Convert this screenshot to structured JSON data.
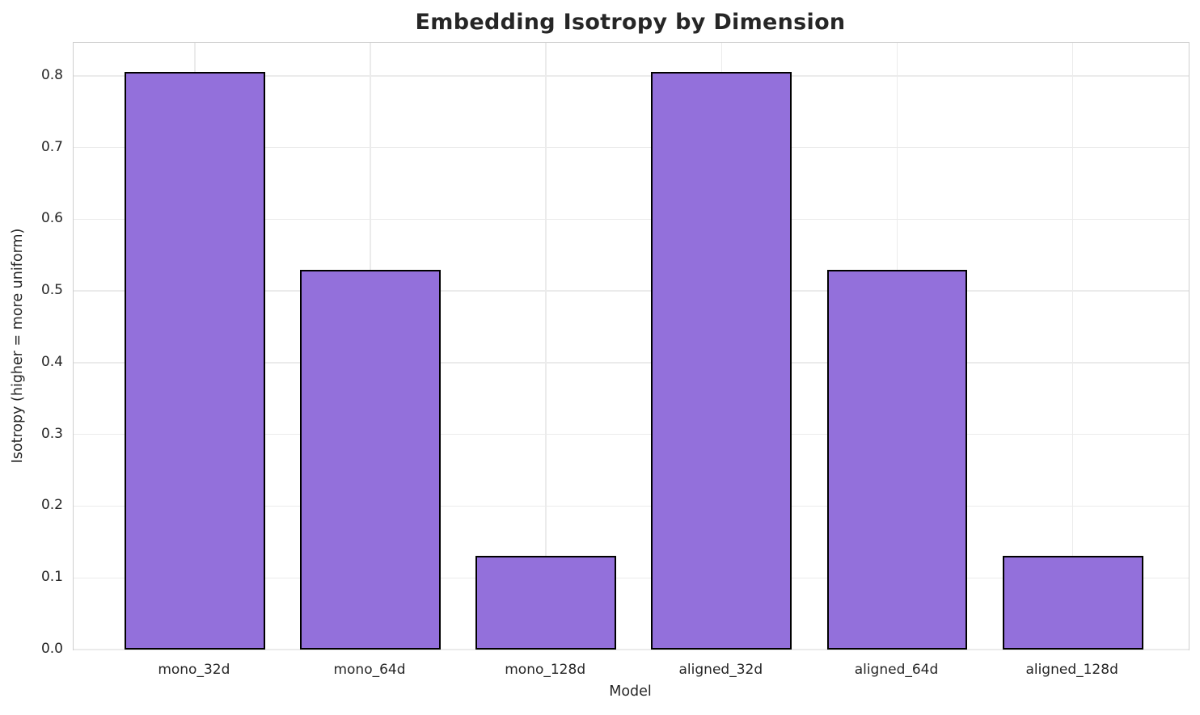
{
  "chart_data": {
    "type": "bar",
    "title": "Embedding Isotropy by Dimension",
    "xlabel": "Model",
    "ylabel": "Isotropy (higher = more uniform)",
    "categories": [
      "mono_32d",
      "mono_64d",
      "mono_128d",
      "aligned_32d",
      "aligned_64d",
      "aligned_128d"
    ],
    "values": [
      0.806,
      0.529,
      0.131,
      0.806,
      0.529,
      0.131
    ],
    "ylim": [
      0,
      0.846
    ],
    "xlim": [
      -0.69,
      5.66
    ],
    "yticks": [
      0.0,
      0.1,
      0.2,
      0.3,
      0.4,
      0.5,
      0.6,
      0.7,
      0.8
    ],
    "ytick_labels": [
      "0.0",
      "0.1",
      "0.2",
      "0.3",
      "0.4",
      "0.5",
      "0.6",
      "0.7",
      "0.8"
    ],
    "bar_width_units": 0.8,
    "grid": true,
    "legend": false,
    "colors": {
      "bar_fill": "#9370DB",
      "bar_edge": "#000000",
      "grid": "#ebebeb",
      "spine": "#cfcfcf",
      "text": "#262626"
    }
  }
}
